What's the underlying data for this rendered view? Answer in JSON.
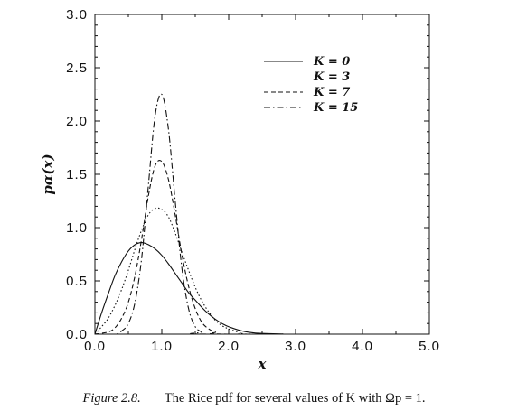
{
  "chart_data": {
    "type": "line",
    "title": "",
    "xlabel": "x",
    "ylabel": "pα(x)",
    "xlim": [
      0,
      5
    ],
    "ylim": [
      0,
      3
    ],
    "xticks": [
      0,
      1,
      2,
      3,
      4,
      5
    ],
    "yticks": [
      0,
      0.5,
      1,
      1.5,
      2,
      2.5,
      3
    ],
    "xtick_labels": [
      "0.0",
      "1.0",
      "2.0",
      "3.0",
      "4.0",
      "5.0"
    ],
    "ytick_labels": [
      "0.0",
      "0.5",
      "1.0",
      "1.5",
      "2.0",
      "2.5",
      "3.0"
    ],
    "grid": false,
    "legend_position": "top-right",
    "series": [
      {
        "name": "K = 0",
        "style": "solid",
        "color": "#111111",
        "x": [
          0,
          0.1,
          0.2,
          0.3,
          0.4,
          0.5,
          0.6,
          0.7,
          0.8,
          0.9,
          1.0,
          1.1,
          1.2,
          1.3,
          1.4,
          1.5,
          1.6,
          1.7,
          1.8,
          1.9,
          2.0,
          2.2,
          2.4,
          2.6,
          2.8,
          3.0,
          5.0
        ],
        "y": [
          0,
          0.2,
          0.38,
          0.55,
          0.68,
          0.78,
          0.84,
          0.86,
          0.84,
          0.8,
          0.74,
          0.66,
          0.57,
          0.48,
          0.39,
          0.32,
          0.25,
          0.19,
          0.14,
          0.1,
          0.07,
          0.03,
          0.01,
          0.005,
          0.002,
          0.0,
          0.0
        ]
      },
      {
        "name": "K = 3",
        "style": "dotted",
        "color": "#111111",
        "x": [
          0,
          0.1,
          0.2,
          0.3,
          0.4,
          0.5,
          0.6,
          0.7,
          0.8,
          0.9,
          1.0,
          1.1,
          1.2,
          1.3,
          1.4,
          1.5,
          1.6,
          1.7,
          1.8,
          1.9,
          2.0,
          2.2,
          2.4,
          5.0
        ],
        "y": [
          0,
          0.07,
          0.15,
          0.27,
          0.42,
          0.6,
          0.8,
          0.98,
          1.12,
          1.18,
          1.17,
          1.1,
          0.95,
          0.77,
          0.6,
          0.44,
          0.31,
          0.21,
          0.13,
          0.08,
          0.05,
          0.01,
          0.0,
          0.0
        ]
      },
      {
        "name": "K = 7",
        "style": "dashed",
        "color": "#111111",
        "x": [
          0,
          0.2,
          0.3,
          0.4,
          0.5,
          0.6,
          0.7,
          0.8,
          0.9,
          1.0,
          1.1,
          1.2,
          1.3,
          1.4,
          1.5,
          1.6,
          1.7,
          1.8,
          2.0,
          5.0
        ],
        "y": [
          0,
          0.02,
          0.06,
          0.15,
          0.3,
          0.55,
          0.9,
          1.3,
          1.58,
          1.62,
          1.45,
          1.12,
          0.75,
          0.45,
          0.24,
          0.11,
          0.05,
          0.02,
          0.0,
          0.0
        ]
      },
      {
        "name": "K = 15",
        "style": "dashdot",
        "color": "#111111",
        "x": [
          0,
          0.3,
          0.4,
          0.5,
          0.6,
          0.7,
          0.8,
          0.9,
          1.0,
          1.1,
          1.2,
          1.3,
          1.4,
          1.5,
          1.6,
          1.7,
          5.0
        ],
        "y": [
          0,
          0.0,
          0.03,
          0.1,
          0.3,
          0.72,
          1.4,
          2.05,
          2.25,
          1.92,
          1.25,
          0.62,
          0.24,
          0.07,
          0.02,
          0.0,
          0.0
        ]
      }
    ]
  },
  "caption": {
    "figure": "Figure 2.8.",
    "text": "The Rice pdf for several values of K with Ωp = 1."
  }
}
